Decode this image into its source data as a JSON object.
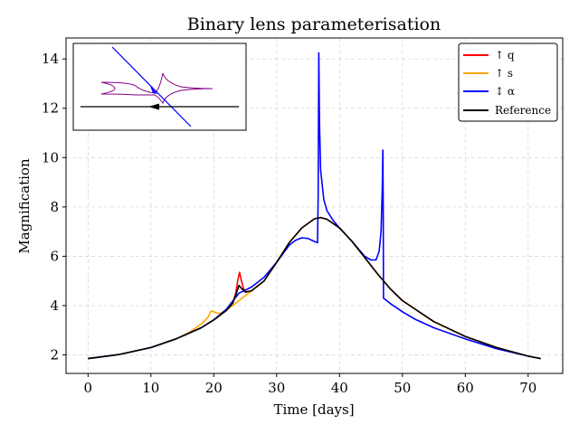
{
  "chart_data": {
    "type": "line",
    "title": "Binary lens parameterisation",
    "xlabel": "Time [days]",
    "ylabel": "Magnification",
    "xlim": [
      -3.5,
      75.5
    ],
    "ylim": [
      1.25,
      14.85
    ],
    "xticks": [
      0,
      10,
      20,
      30,
      40,
      50,
      60,
      70
    ],
    "yticks": [
      2,
      4,
      6,
      8,
      10,
      12,
      14
    ],
    "grid": true,
    "legend_position": "top-right",
    "series": [
      {
        "name": "↑ q",
        "color": "#ff0000",
        "points": [
          [
            0,
            1.85
          ],
          [
            5,
            2.02
          ],
          [
            10,
            2.3
          ],
          [
            14,
            2.65
          ],
          [
            18,
            3.1
          ],
          [
            20,
            3.42
          ],
          [
            22,
            3.8
          ],
          [
            23,
            4.1
          ],
          [
            23.5,
            4.5
          ],
          [
            23.8,
            5.0
          ],
          [
            24.1,
            5.35
          ],
          [
            24.4,
            5.0
          ],
          [
            24.7,
            4.7
          ],
          [
            25.2,
            4.55
          ],
          [
            26,
            4.6
          ],
          [
            28,
            5.0
          ],
          [
            30,
            5.75
          ],
          [
            32,
            6.55
          ],
          [
            34,
            7.15
          ],
          [
            36,
            7.52
          ],
          [
            37,
            7.57
          ],
          [
            38,
            7.5
          ],
          [
            40,
            7.15
          ],
          [
            42,
            6.6
          ],
          [
            44,
            5.95
          ],
          [
            46,
            5.3
          ],
          [
            47,
            5.0
          ],
          [
            48,
            4.7
          ],
          [
            50,
            4.2
          ],
          [
            55,
            3.35
          ],
          [
            60,
            2.75
          ],
          [
            65,
            2.3
          ],
          [
            70,
            1.95
          ],
          [
            72,
            1.85
          ]
        ]
      },
      {
        "name": "↑ s",
        "color": "#ffa500",
        "points": [
          [
            0,
            1.85
          ],
          [
            5,
            2.02
          ],
          [
            10,
            2.3
          ],
          [
            14,
            2.65
          ],
          [
            16,
            2.9
          ],
          [
            18,
            3.25
          ],
          [
            19,
            3.5
          ],
          [
            19.6,
            3.78
          ],
          [
            20,
            3.75
          ],
          [
            20.5,
            3.7
          ],
          [
            21,
            3.68
          ],
          [
            22,
            3.82
          ],
          [
            23,
            4.0
          ],
          [
            24,
            4.2
          ],
          [
            25,
            4.4
          ],
          [
            26,
            4.6
          ],
          [
            28,
            5.0
          ],
          [
            30,
            5.75
          ],
          [
            32,
            6.55
          ],
          [
            34,
            7.15
          ],
          [
            36,
            7.52
          ],
          [
            37,
            7.57
          ],
          [
            38,
            7.5
          ],
          [
            40,
            7.15
          ],
          [
            42,
            6.6
          ],
          [
            44,
            5.95
          ],
          [
            46,
            5.3
          ],
          [
            48,
            4.7
          ],
          [
            50,
            4.2
          ],
          [
            55,
            3.35
          ],
          [
            60,
            2.75
          ],
          [
            65,
            2.3
          ],
          [
            70,
            1.95
          ],
          [
            72,
            1.85
          ]
        ]
      },
      {
        "name": "↕ α",
        "color": "#0000ff",
        "points": [
          [
            0,
            1.85
          ],
          [
            5,
            2.02
          ],
          [
            10,
            2.3
          ],
          [
            14,
            2.65
          ],
          [
            18,
            3.1
          ],
          [
            20,
            3.42
          ],
          [
            22,
            3.85
          ],
          [
            24,
            4.5
          ],
          [
            26,
            4.75
          ],
          [
            28,
            5.15
          ],
          [
            30,
            5.75
          ],
          [
            32,
            6.45
          ],
          [
            33,
            6.65
          ],
          [
            34,
            6.75
          ],
          [
            35,
            6.72
          ],
          [
            36,
            6.6
          ],
          [
            36.5,
            6.55
          ],
          [
            36.6,
            8.5
          ],
          [
            36.7,
            14.25
          ],
          [
            36.8,
            11.5
          ],
          [
            37,
            9.5
          ],
          [
            37.5,
            8.3
          ],
          [
            38,
            7.85
          ],
          [
            39,
            7.45
          ],
          [
            40,
            7.15
          ],
          [
            42,
            6.6
          ],
          [
            44,
            6.0
          ],
          [
            45,
            5.85
          ],
          [
            45.8,
            5.85
          ],
          [
            46.3,
            6.2
          ],
          [
            46.6,
            7.0
          ],
          [
            46.8,
            8.8
          ],
          [
            46.9,
            10.3
          ],
          [
            46.95,
            8.0
          ],
          [
            47,
            4.3
          ],
          [
            48,
            4.1
          ],
          [
            50,
            3.75
          ],
          [
            52,
            3.45
          ],
          [
            55,
            3.1
          ],
          [
            60,
            2.65
          ],
          [
            65,
            2.25
          ],
          [
            70,
            1.95
          ],
          [
            72,
            1.85
          ]
        ]
      },
      {
        "name": "Reference",
        "color": "#000000",
        "points": [
          [
            0,
            1.85
          ],
          [
            5,
            2.02
          ],
          [
            10,
            2.3
          ],
          [
            14,
            2.65
          ],
          [
            18,
            3.1
          ],
          [
            20,
            3.42
          ],
          [
            22,
            3.8
          ],
          [
            23,
            4.1
          ],
          [
            23.6,
            4.5
          ],
          [
            24,
            4.82
          ],
          [
            24.4,
            4.7
          ],
          [
            25,
            4.55
          ],
          [
            26,
            4.6
          ],
          [
            28,
            5.0
          ],
          [
            30,
            5.75
          ],
          [
            32,
            6.55
          ],
          [
            34,
            7.15
          ],
          [
            36,
            7.52
          ],
          [
            37,
            7.57
          ],
          [
            38,
            7.5
          ],
          [
            40,
            7.15
          ],
          [
            42,
            6.6
          ],
          [
            44,
            5.95
          ],
          [
            46,
            5.3
          ],
          [
            48,
            4.7
          ],
          [
            50,
            4.2
          ],
          [
            55,
            3.35
          ],
          [
            60,
            2.75
          ],
          [
            65,
            2.3
          ],
          [
            70,
            1.95
          ],
          [
            72,
            1.85
          ]
        ]
      }
    ]
  }
}
